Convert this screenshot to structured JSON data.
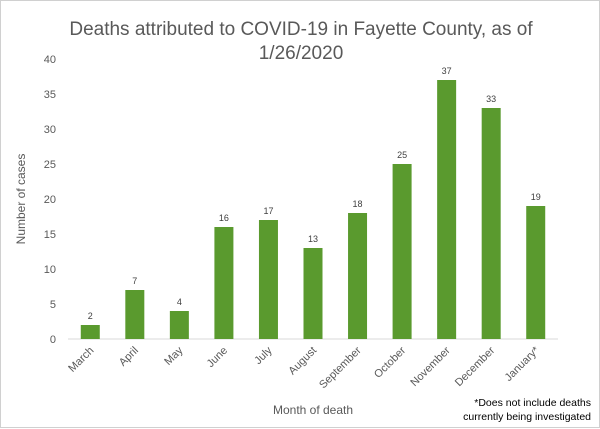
{
  "chart_data": {
    "type": "bar",
    "title_lines": [
      "Deaths attributed to COVID-19 in Fayette County, as of",
      "1/26/2020"
    ],
    "xlabel": "Month of death",
    "ylabel": "Number of cases",
    "categories": [
      "March",
      "April",
      "May",
      "June",
      "July",
      "August",
      "September",
      "October",
      "November",
      "December",
      "January*"
    ],
    "values": [
      2,
      7,
      4,
      16,
      17,
      13,
      18,
      25,
      37,
      33,
      19
    ],
    "ylim": [
      0,
      40
    ],
    "yticks": [
      0,
      5,
      10,
      15,
      20,
      25,
      30,
      35,
      40
    ],
    "grid": false,
    "bar_color": "#5a9a2e",
    "footnote_lines": [
      "*Does not include deaths",
      "currently being investigated"
    ]
  }
}
